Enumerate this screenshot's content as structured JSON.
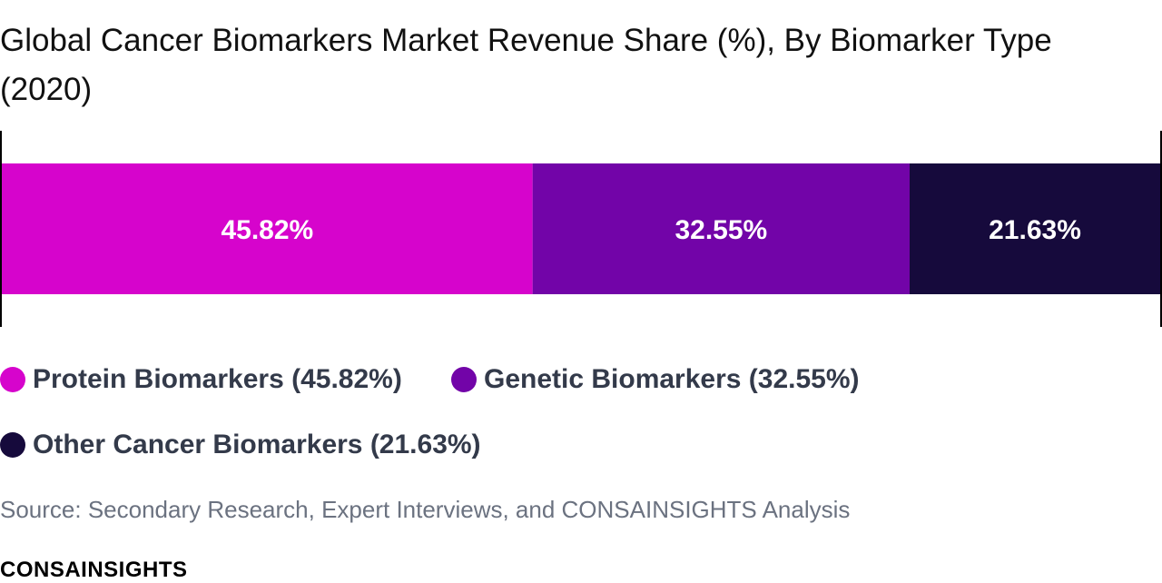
{
  "title": "Global Cancer Biomarkers Market Revenue Share (%), By Biomarker Type (2020)",
  "source": "Source: Secondary Research, Expert Interviews, and CONSAINSIGHTS Analysis",
  "brand": "CONSAINSIGHTS",
  "chart_data": {
    "type": "bar",
    "orientation": "horizontal-stacked-100",
    "title": "Global Cancer Biomarkers Market Revenue Share (%), By Biomarker Type (2020)",
    "unit": "%",
    "series": [
      {
        "name": "Protein Biomarkers",
        "value": 45.82,
        "value_label": "45.82%",
        "legend_label": "Protein Biomarkers (45.82%)",
        "color": "#d604cc"
      },
      {
        "name": "Genetic Biomarkers",
        "value": 32.55,
        "value_label": "32.55%",
        "legend_label": "Genetic Biomarkers (32.55%)",
        "color": "#7204a8"
      },
      {
        "name": "Other Cancer Biomarkers",
        "value": 21.63,
        "value_label": "21.63%",
        "legend_label": "Other Cancer Biomarkers (21.63%)",
        "color": "#160a3c"
      }
    ],
    "xlim": [
      0,
      100
    ],
    "grid": false,
    "legend_position": "bottom"
  }
}
